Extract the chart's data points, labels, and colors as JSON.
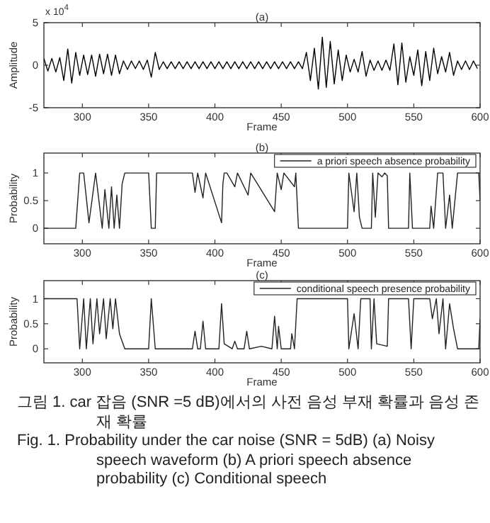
{
  "chart_data": [
    {
      "type": "line",
      "title": "(a)",
      "xlabel": "Frame",
      "ylabel": "Amplitude",
      "color": "#000000",
      "xlim": [
        271,
        600
      ],
      "xticks": [
        300,
        350,
        400,
        450,
        500,
        550,
        600
      ],
      "ylim": [
        -5,
        5
      ],
      "yticks": [
        -5,
        0,
        5
      ],
      "annotations": [
        "x 10$^{4}$"
      ],
      "x": [
        271,
        274,
        277,
        280,
        283,
        286,
        289,
        292,
        295,
        298,
        301,
        304,
        307,
        310,
        313,
        316,
        319,
        322,
        325,
        328,
        331,
        334,
        337,
        340,
        343,
        346,
        349,
        352,
        355,
        358,
        361,
        364,
        367,
        370,
        373,
        376,
        379,
        382,
        385,
        388,
        391,
        394,
        397,
        400,
        403,
        406,
        409,
        412,
        415,
        418,
        421,
        424,
        427,
        430,
        433,
        436,
        439,
        442,
        445,
        448,
        451,
        454,
        457,
        460,
        463,
        466,
        469,
        472,
        475,
        478,
        481,
        484,
        487,
        490,
        493,
        496,
        499,
        502,
        505,
        508,
        511,
        514,
        517,
        520,
        523,
        526,
        529,
        532,
        535,
        538,
        541,
        544,
        547,
        550,
        553,
        556,
        559,
        562,
        565,
        568,
        571,
        574,
        577,
        580,
        583,
        586,
        589,
        592,
        595,
        598
      ],
      "values": [
        0.8,
        -0.7,
        0.8,
        -0.8,
        0.9,
        -1.8,
        1.9,
        -2.1,
        1.5,
        -1.2,
        1.2,
        -1.1,
        1.2,
        -1.3,
        1.3,
        -1.0,
        1.3,
        -1.2,
        1.2,
        -1.0,
        0.5,
        -0.5,
        0.5,
        -0.4,
        0.5,
        -0.5,
        0.6,
        -1.4,
        1.5,
        -0.5,
        0.4,
        -0.4,
        0.4,
        -0.4,
        0.4,
        -0.4,
        0.4,
        -0.4,
        0.4,
        -0.4,
        0.4,
        -0.4,
        0.4,
        -0.4,
        0.4,
        -0.4,
        0.4,
        -0.4,
        0.4,
        -0.4,
        0.4,
        -0.4,
        0.4,
        -0.4,
        0.4,
        -0.4,
        0.4,
        -0.4,
        0.4,
        -0.4,
        0.4,
        -0.4,
        0.4,
        -0.4,
        0.4,
        -0.4,
        1.5,
        -1.8,
        2.0,
        -2.8,
        3.3,
        -2.6,
        2.8,
        -2.2,
        1.8,
        -1.8,
        1.2,
        -0.8,
        0.7,
        -0.8,
        1.6,
        -1.3,
        0.6,
        -0.6,
        0.5,
        -0.6,
        0.6,
        -0.6,
        2.5,
        -2.3,
        2.6,
        -2.0,
        1.0,
        -1.2,
        1.8,
        -2.4,
        1.6,
        -1.8,
        2.0,
        -1.0,
        1.0,
        -0.8,
        1.5,
        -1.2,
        0.5,
        -0.5,
        0.5,
        -0.5,
        0.5,
        -0.4
      ]
    },
    {
      "type": "line",
      "title": "(b)",
      "xlabel": "Frame",
      "ylabel": "Probability",
      "xlim": [
        271,
        600
      ],
      "xticks": [
        300,
        350,
        400,
        450,
        500,
        550,
        600
      ],
      "ylim": [
        -0.28,
        1.36
      ],
      "yticks": [
        0,
        0.5,
        1
      ],
      "legend": "top right",
      "series": [
        {
          "name": "a priori speech absence probability",
          "color": "#222222",
          "x": [
            271,
            295,
            298,
            301,
            305,
            310,
            315,
            317,
            320,
            322,
            324,
            326,
            328,
            330,
            332,
            350,
            352,
            355,
            356,
            383,
            385,
            387,
            391,
            393,
            405,
            406,
            407,
            409,
            415,
            417,
            425,
            427,
            445,
            447,
            450,
            452,
            460,
            461,
            463,
            500,
            501,
            505,
            507,
            509,
            511,
            518,
            519,
            521,
            523,
            526,
            528,
            530,
            531,
            546,
            547,
            549,
            562,
            563,
            565,
            568,
            572,
            574,
            577,
            579,
            583,
            599,
            600
          ],
          "values": [
            0,
            0,
            1,
            1,
            0.1,
            1,
            0,
            0.7,
            0,
            0.75,
            0,
            0.6,
            0,
            0.8,
            1,
            1,
            0,
            0,
            1,
            1,
            0.65,
            1,
            0.55,
            1,
            0.1,
            0.8,
            1,
            1,
            0.75,
            1,
            0.6,
            1,
            0.3,
            1,
            0.7,
            1,
            0.75,
            1,
            0,
            0,
            1,
            0.3,
            1,
            0.2,
            0,
            0,
            1,
            0.2,
            1,
            0.93,
            1,
            0.95,
            0,
            0,
            1,
            0,
            0,
            0.4,
            0,
            1,
            1,
            0,
            0.6,
            0,
            1,
            1,
            0.5
          ]
        }
      ]
    },
    {
      "type": "line",
      "title": "(c)",
      "xlabel": "Frame",
      "ylabel": "Probability",
      "xlim": [
        271,
        600
      ],
      "xticks": [
        300,
        350,
        400,
        450,
        500,
        550,
        600
      ],
      "ylim": [
        -0.28,
        1.36
      ],
      "yticks": [
        0,
        0.5,
        1
      ],
      "legend": "top right",
      "series": [
        {
          "name": "conditional speech presence probability",
          "color": "#222222",
          "x": [
            271,
            296,
            298,
            301,
            303,
            306,
            308,
            311,
            313,
            316,
            318,
            321,
            323,
            325,
            328,
            332,
            350,
            352,
            355,
            383,
            385,
            387,
            389,
            391,
            393,
            403,
            405,
            407,
            413,
            415,
            417,
            422,
            424,
            426,
            435,
            443,
            445,
            447,
            448,
            450,
            457,
            458,
            460,
            462,
            500,
            501,
            505,
            508,
            510,
            517,
            518,
            520,
            522,
            530,
            531,
            546,
            548,
            550,
            562,
            564,
            567,
            569,
            572,
            574,
            577,
            580,
            583,
            599,
            600
          ],
          "values": [
            1,
            1,
            0,
            1,
            0,
            1,
            0.1,
            1,
            0.3,
            1,
            0.2,
            1,
            0.4,
            1,
            0.3,
            0,
            0,
            1,
            0,
            0,
            0.35,
            0,
            0,
            0.55,
            0,
            0,
            0.9,
            0.1,
            0,
            0.15,
            0,
            0,
            0.35,
            0,
            0.05,
            0,
            0.65,
            0,
            0.45,
            0,
            0,
            0.3,
            0,
            1,
            1,
            0,
            0.7,
            0,
            1,
            1,
            0,
            1,
            0.1,
            0.05,
            1,
            1,
            0,
            1,
            1,
            0.6,
            1,
            0.3,
            1,
            0,
            0.9,
            0.4,
            0,
            0,
            0.6
          ]
        }
      ],
      "annotations": [
        "그림 1. car 잡음 (SNR =5 dB)에서의 사전 음성 부재 확률과 음성 존재 확률",
        "Fig. 1. Probability under the car noise (SNR = 5dB) (a) Noisy speech waveform (b) A priori speech absence probability (c) Conditional speech"
      ]
    }
  ]
}
